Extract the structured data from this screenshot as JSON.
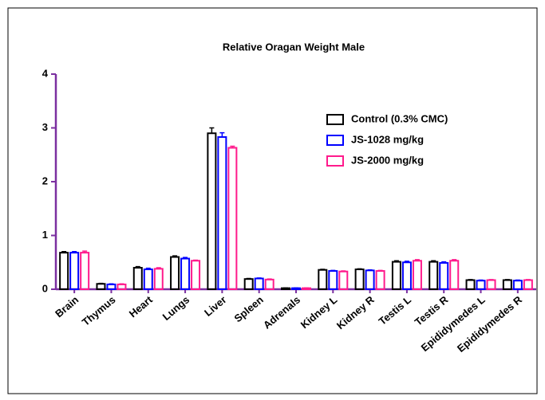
{
  "chart_data": {
    "type": "bar",
    "title": "Relative Oragan Weight Male",
    "categories": [
      "Brain",
      "Thymus",
      "Heart",
      "Lungs",
      "Liver",
      "Spleen",
      "Adrenals",
      "Kidney L",
      "Kidney R",
      "Testis L",
      "Testis R",
      "Epididymedes L",
      "Epididymedes R"
    ],
    "series": [
      {
        "name": "Control (0.3% CMC)",
        "color": "#000000",
        "values": [
          0.68,
          0.1,
          0.4,
          0.6,
          2.9,
          0.19,
          0.02,
          0.36,
          0.37,
          0.51,
          0.51,
          0.17,
          0.17
        ],
        "errors": [
          0.02,
          0.01,
          0.02,
          0.02,
          0.1,
          0.01,
          0.005,
          0.01,
          0.01,
          0.02,
          0.02,
          0.01,
          0.01
        ]
      },
      {
        "name": "JS-1028 mg/kg",
        "color": "#0000ff",
        "values": [
          0.68,
          0.09,
          0.37,
          0.57,
          2.83,
          0.2,
          0.02,
          0.34,
          0.35,
          0.5,
          0.49,
          0.16,
          0.16
        ],
        "errors": [
          0.02,
          0.01,
          0.02,
          0.02,
          0.08,
          0.01,
          0.005,
          0.01,
          0.01,
          0.02,
          0.02,
          0.01,
          0.01
        ]
      },
      {
        "name": "JS-2000 mg/kg",
        "color": "#ff1a8c",
        "values": [
          0.68,
          0.09,
          0.38,
          0.53,
          2.63,
          0.18,
          0.02,
          0.33,
          0.34,
          0.53,
          0.53,
          0.17,
          0.17
        ],
        "errors": [
          0.03,
          0.01,
          0.02,
          0.01,
          0.03,
          0.01,
          0.005,
          0.01,
          0.01,
          0.02,
          0.02,
          0.01,
          0.01
        ]
      }
    ],
    "ylim": [
      0,
      4
    ],
    "yticks": [
      0,
      1,
      2,
      3,
      4
    ],
    "grid": false,
    "legend": "upper right"
  }
}
